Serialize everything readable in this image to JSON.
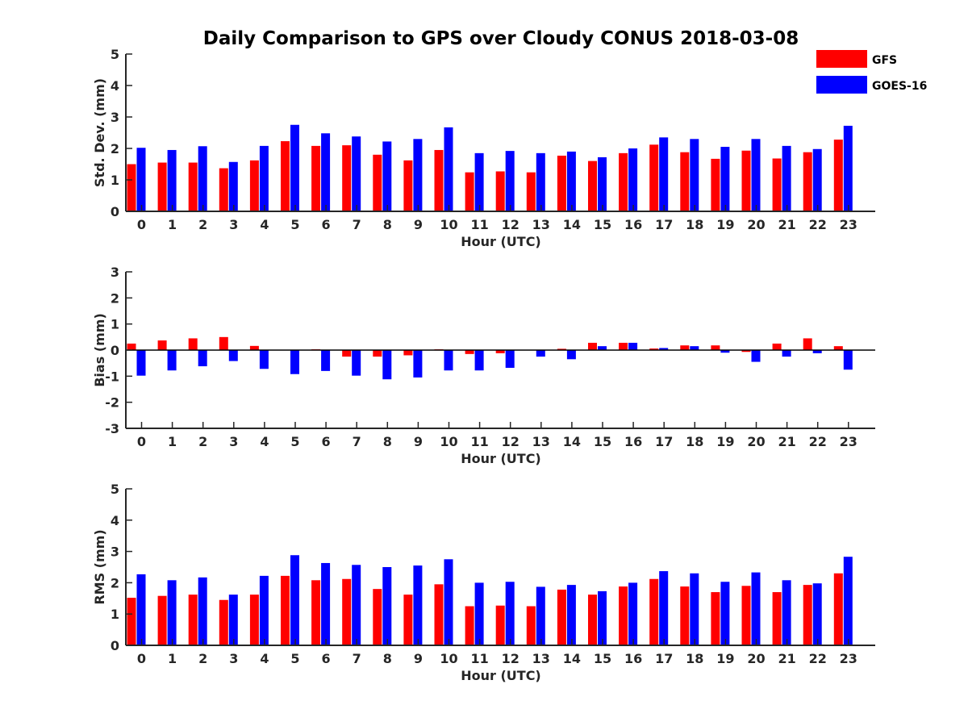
{
  "chart_data": [
    {
      "type": "bar",
      "title": "Daily Comparison to GPS over Cloudy CONUS 2018-03-08",
      "xlabel": "Hour (UTC)",
      "ylabel": "Std. Dev. (mm)",
      "ylim": [
        0,
        5
      ],
      "yticks": [
        "0",
        "1",
        "2",
        "3",
        "4",
        "5"
      ],
      "categories": [
        "0",
        "1",
        "2",
        "3",
        "4",
        "5",
        "6",
        "7",
        "8",
        "9",
        "10",
        "11",
        "12",
        "13",
        "14",
        "15",
        "16",
        "17",
        "18",
        "19",
        "20",
        "21",
        "22",
        "23"
      ],
      "legend": "top-right",
      "series": [
        {
          "name": "GFS",
          "color": "#ff0000",
          "values": [
            1.5,
            1.55,
            1.55,
            1.37,
            1.62,
            2.23,
            2.08,
            2.1,
            1.8,
            1.62,
            1.95,
            1.24,
            1.27,
            1.24,
            1.77,
            1.6,
            1.85,
            2.12,
            1.88,
            1.67,
            1.93,
            1.68,
            1.88,
            2.28
          ]
        },
        {
          "name": "GOES-16",
          "color": "#0000ff",
          "values": [
            2.02,
            1.95,
            2.07,
            1.57,
            2.08,
            2.75,
            2.48,
            2.38,
            2.22,
            2.3,
            2.67,
            1.85,
            1.92,
            1.85,
            1.9,
            1.72,
            2.0,
            2.35,
            2.3,
            2.05,
            2.3,
            2.08,
            1.98,
            2.72
          ]
        }
      ]
    },
    {
      "type": "bar",
      "title": "",
      "xlabel": "Hour (UTC)",
      "ylabel": "Bias (mm)",
      "ylim": [
        -3,
        3
      ],
      "yticks": [
        "-3",
        "-2",
        "-1",
        "0",
        "1",
        "2",
        "3"
      ],
      "categories": [
        "0",
        "1",
        "2",
        "3",
        "4",
        "5",
        "6",
        "7",
        "8",
        "9",
        "10",
        "11",
        "12",
        "13",
        "14",
        "15",
        "16",
        "17",
        "18",
        "19",
        "20",
        "21",
        "22",
        "23"
      ],
      "series": [
        {
          "name": "GFS",
          "color": "#ff0000",
          "values": [
            0.25,
            0.37,
            0.45,
            0.5,
            0.16,
            0.0,
            0.03,
            -0.25,
            -0.25,
            -0.2,
            0.03,
            -0.15,
            -0.12,
            0.0,
            0.05,
            0.28,
            0.28,
            0.06,
            0.18,
            0.18,
            -0.07,
            0.25,
            0.45,
            0.15
          ]
        },
        {
          "name": "GOES-16",
          "color": "#0000ff",
          "values": [
            -0.98,
            -0.78,
            -0.62,
            -0.42,
            -0.72,
            -0.92,
            -0.8,
            -0.98,
            -1.12,
            -1.05,
            -0.78,
            -0.78,
            -0.68,
            -0.25,
            -0.35,
            0.15,
            0.28,
            0.08,
            0.15,
            -0.1,
            -0.45,
            -0.25,
            -0.12,
            -0.75
          ]
        }
      ]
    },
    {
      "type": "bar",
      "title": "",
      "xlabel": "Hour (UTC)",
      "ylabel": "RMS (mm)",
      "ylim": [
        0,
        5
      ],
      "yticks": [
        "0",
        "1",
        "2",
        "3",
        "4",
        "5"
      ],
      "categories": [
        "0",
        "1",
        "2",
        "3",
        "4",
        "5",
        "6",
        "7",
        "8",
        "9",
        "10",
        "11",
        "12",
        "13",
        "14",
        "15",
        "16",
        "17",
        "18",
        "19",
        "20",
        "21",
        "22",
        "23"
      ],
      "series": [
        {
          "name": "GFS",
          "color": "#ff0000",
          "values": [
            1.52,
            1.58,
            1.62,
            1.45,
            1.62,
            2.22,
            2.08,
            2.12,
            1.8,
            1.62,
            1.95,
            1.25,
            1.27,
            1.25,
            1.78,
            1.62,
            1.88,
            2.12,
            1.88,
            1.7,
            1.9,
            1.7,
            1.93,
            2.3
          ]
        },
        {
          "name": "GOES-16",
          "color": "#0000ff",
          "values": [
            2.27,
            2.08,
            2.17,
            1.62,
            2.22,
            2.88,
            2.63,
            2.57,
            2.5,
            2.55,
            2.75,
            2.0,
            2.03,
            1.87,
            1.93,
            1.73,
            2.0,
            2.37,
            2.3,
            2.03,
            2.33,
            2.08,
            1.98,
            2.83
          ]
        }
      ]
    }
  ]
}
